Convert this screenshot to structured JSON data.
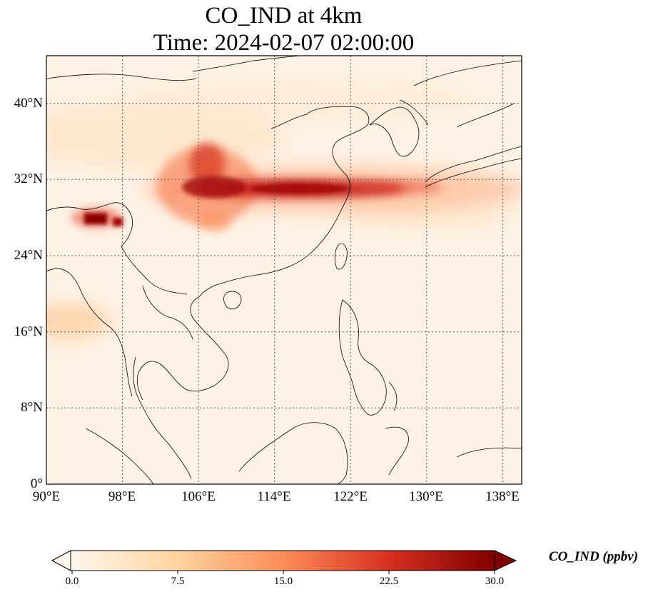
{
  "title": {
    "line1": "CO_IND at 4km",
    "line2": "Time: 2024-02-07 02:00:00"
  },
  "map": {
    "projection": "PlateCarree",
    "lon_range_deg_e": [
      90,
      140
    ],
    "lat_range_deg_n": [
      0,
      45
    ],
    "gridlines": "dotted",
    "colormap": "OrRd",
    "x_ticks": [
      "90°E",
      "98°E",
      "106°E",
      "114°E",
      "122°E",
      "130°E",
      "138°E"
    ],
    "y_ticks": [
      "0°",
      "8°N",
      "16°N",
      "24°N",
      "32°N",
      "40°N"
    ]
  },
  "colorbar": {
    "label": "CO_IND (ppbv)",
    "ticks": [
      "0.0",
      "7.5",
      "15.0",
      "22.5",
      "30.0"
    ],
    "range": [
      0,
      30
    ],
    "extend": "both",
    "colors": [
      "#fff7ec",
      "#fdd49e",
      "#fc8d59",
      "#d7301f",
      "#7f0000"
    ]
  }
}
